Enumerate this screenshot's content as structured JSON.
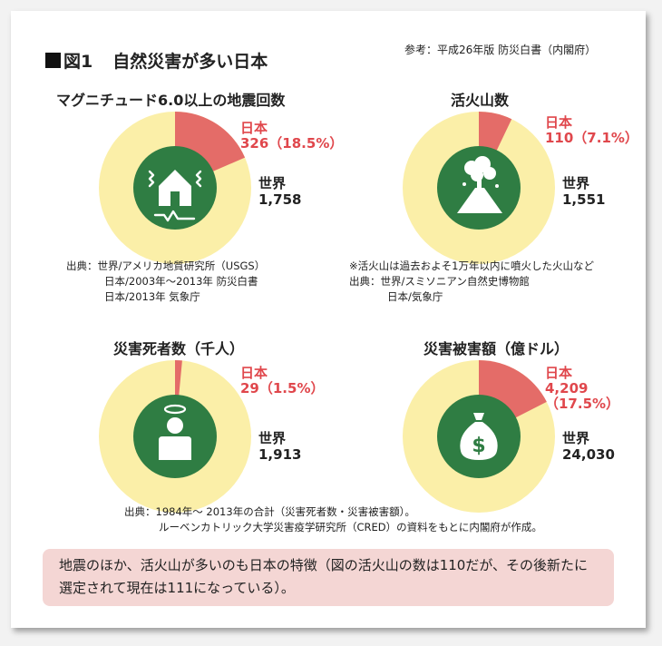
{
  "figure": {
    "number": "図1",
    "title": "自然災害が多い日本",
    "source": "参考：平成26年版 防災白書（内閣府）"
  },
  "colors": {
    "japan": "#e46c68",
    "world": "#fbefa8",
    "icon": "#2f7d43",
    "japan_text": "#e0474c"
  },
  "chart_data": [
    {
      "type": "pie",
      "title": "マグニチュード6.0以上の地震回数",
      "icon": "house-earthquake-icon",
      "japan": {
        "label": "日本",
        "value_text": "326（18.5%）",
        "value": 326,
        "percent": 18.5
      },
      "world": {
        "label": "世界",
        "value_text": "1,758",
        "value": 1758
      }
    },
    {
      "type": "pie",
      "title": "活火山数",
      "icon": "volcano-icon",
      "japan": {
        "label": "日本",
        "value_text": "110（7.1%）",
        "value": 110,
        "percent": 7.1
      },
      "world": {
        "label": "世界",
        "value_text": "1,551",
        "value": 1551
      }
    },
    {
      "type": "pie",
      "title": "災害死者数（千人）",
      "icon": "deceased-person-icon",
      "japan": {
        "label": "日本",
        "value_text": "29（1.5%）",
        "value": 29,
        "percent": 1.5
      },
      "world": {
        "label": "世界",
        "value_text": "1,913",
        "value": 1913
      }
    },
    {
      "type": "pie",
      "title": "災害被害額（億ドル）",
      "icon": "money-bag-icon",
      "japan": {
        "label": "日本",
        "value_line1": "4,209",
        "value_line2": "（17.5%）",
        "value": 4209,
        "percent": 17.5
      },
      "world": {
        "label": "世界",
        "value_text": "24,030",
        "value": 24030
      }
    }
  ],
  "notes": {
    "earthquake": [
      "出典：世界/アメリカ地質研究所（USGS）",
      "日本/2003年～2013年 防災白書",
      "日本/2013年 気象庁"
    ],
    "volcano": [
      "※活火山は過去およそ1万年以内に噴火した火山など",
      "出典：世界/スミソニアン自然史博物館",
      "日本/気象庁"
    ],
    "bottom": [
      "出典：1984年～ 2013年の合計（災害死者数・災害被害額）。",
      "ルーベンカトリック大学災害疫学研究所（CRED）の資料をもとに内閣府が作成。"
    ]
  },
  "summary": "地震のほか、活火山が多いのも日本の特徴（図の活火山の数は110だが、その後新たに選定されて現在は111になっている）。"
}
